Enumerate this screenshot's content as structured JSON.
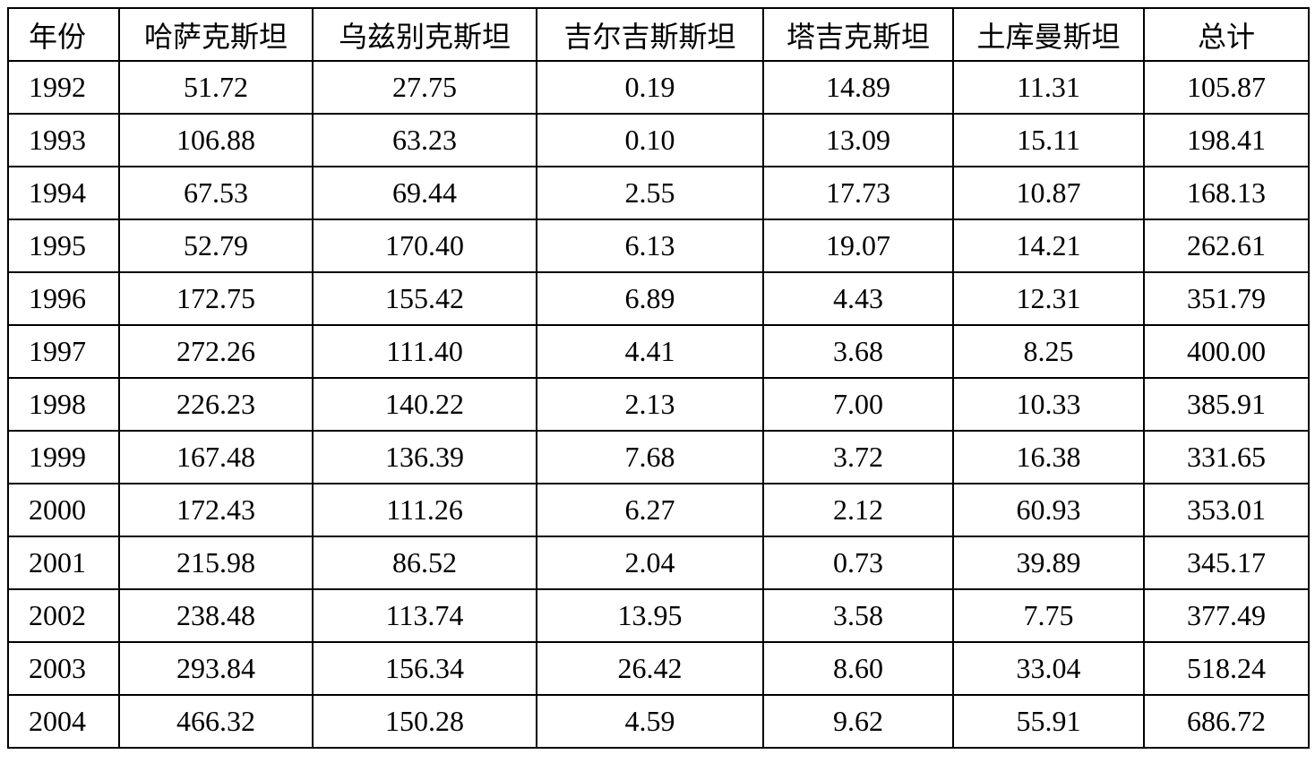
{
  "table": {
    "header": [
      "年份",
      "哈萨克斯坦",
      "乌兹别克斯坦",
      "吉尔吉斯斯坦",
      "塔吉克斯坦",
      "土库曼斯坦",
      "总计"
    ],
    "rows": [
      [
        "1992",
        "51.72",
        "27.75",
        "0.19",
        "14.89",
        "11.31",
        "105.87"
      ],
      [
        "1993",
        "106.88",
        "63.23",
        "0.10",
        "13.09",
        "15.11",
        "198.41"
      ],
      [
        "1994",
        "67.53",
        "69.44",
        "2.55",
        "17.73",
        "10.87",
        "168.13"
      ],
      [
        "1995",
        "52.79",
        "170.40",
        "6.13",
        "19.07",
        "14.21",
        "262.61"
      ],
      [
        "1996",
        "172.75",
        "155.42",
        "6.89",
        "4.43",
        "12.31",
        "351.79"
      ],
      [
        "1997",
        "272.26",
        "111.40",
        "4.41",
        "3.68",
        "8.25",
        "400.00"
      ],
      [
        "1998",
        "226.23",
        "140.22",
        "2.13",
        "7.00",
        "10.33",
        "385.91"
      ],
      [
        "1999",
        "167.48",
        "136.39",
        "7.68",
        "3.72",
        "16.38",
        "331.65"
      ],
      [
        "2000",
        "172.43",
        "111.26",
        "6.27",
        "2.12",
        "60.93",
        "353.01"
      ],
      [
        "2001",
        "215.98",
        "86.52",
        "2.04",
        "0.73",
        "39.89",
        "345.17"
      ],
      [
        "2002",
        "238.48",
        "113.74",
        "13.95",
        "3.58",
        "7.75",
        "377.49"
      ],
      [
        "2003",
        "293.84",
        "156.34",
        "26.42",
        "8.60",
        "33.04",
        "518.24"
      ],
      [
        "2004",
        "466.32",
        "150.28",
        "4.59",
        "9.62",
        "55.91",
        "686.72"
      ]
    ]
  }
}
